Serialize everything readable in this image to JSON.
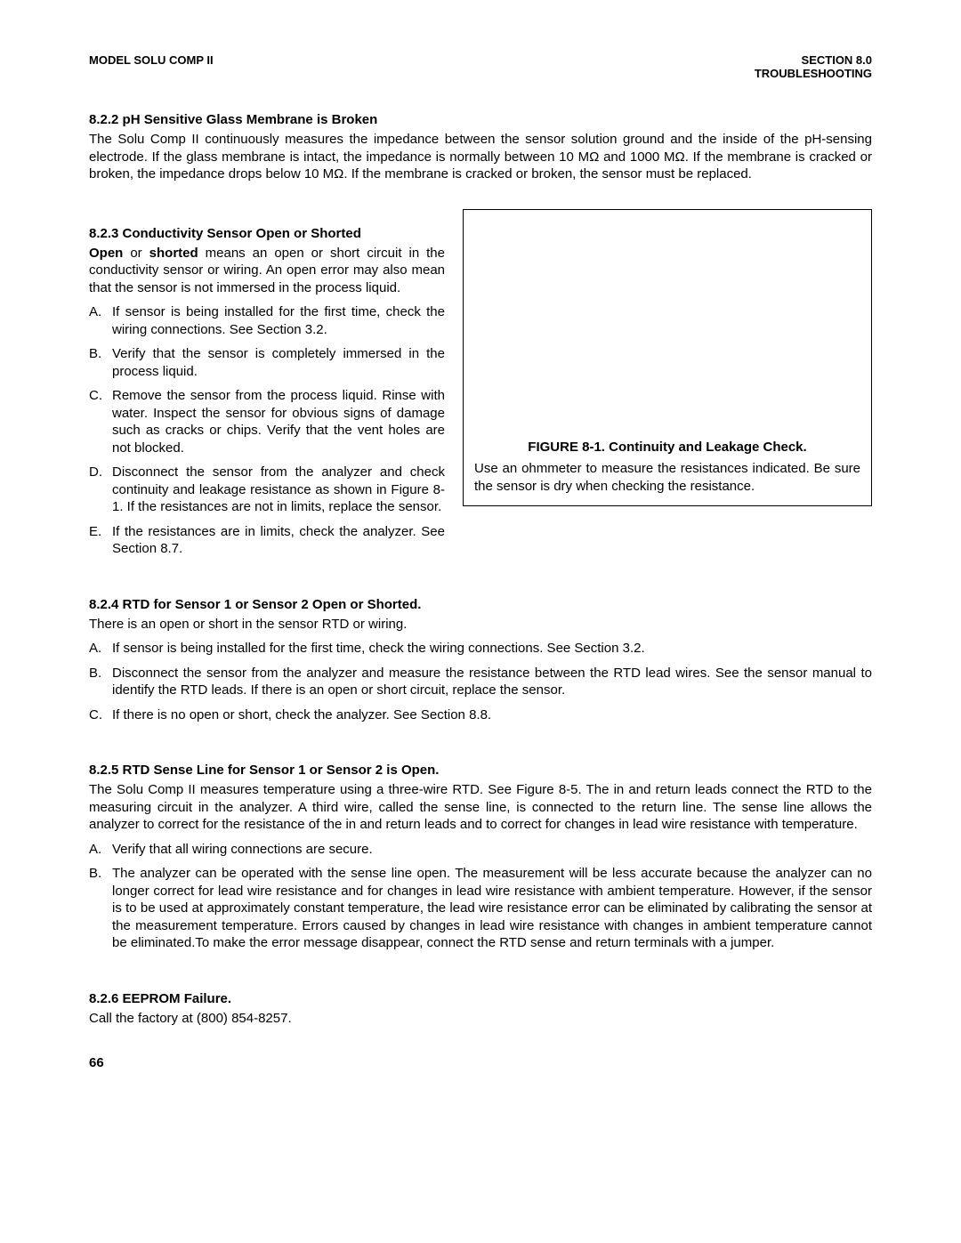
{
  "header": {
    "left": "MODEL SOLU COMP II",
    "right_line1": "SECTION 8.0",
    "right_line2": "TROUBLESHOOTING"
  },
  "sections": {
    "s822": {
      "title": "8.2.2  pH Sensitive Glass Membrane is Broken",
      "para": "The Solu Comp II continuously measures the impedance between the sensor solution ground and the inside of the pH-sensing electrode. If the glass membrane is intact, the impedance is normally between 10 MΩ and 1000 MΩ. If the membrane is cracked or broken, the impedance drops below 10 MΩ. If the membrane is cracked or broken, the sensor must be replaced."
    },
    "s823": {
      "title": "8.2.3  Conductivity Sensor Open or Shorted",
      "intro_pre": "Open",
      "intro_mid": " or ",
      "intro_bold2": "shorted",
      "intro_rest": " means an open or short circuit in the conductivity sensor or wiring. An open error may also mean that the sensor is not immersed in the process liquid.",
      "items": [
        "If sensor is being installed for the first time, check the wiring connections. See Section 3.2.",
        "Verify that the sensor is completely immersed in the process liquid.",
        "Remove the sensor from the process liquid. Rinse with water. Inspect the sensor for obvious signs of damage such as cracks or chips. Verify that the vent holes are not blocked.",
        "Disconnect the sensor from the analyzer and check continuity and leakage resistance as shown in Figure 8-1. If the resistances are not in limits, replace the sensor.",
        "If the resistances are in limits, check the analyzer. See Section 8.7."
      ]
    },
    "figure": {
      "title": "FIGURE 8-1. Continuity and Leakage Check.",
      "caption": "Use an ohmmeter to measure the resistances indicated. Be sure the sensor is dry when checking the resistance."
    },
    "s824": {
      "title": "8.2.4  RTD for Sensor 1 or Sensor 2 Open or Shorted.",
      "intro": "There is an open or short in the sensor RTD or wiring.",
      "items": [
        "If sensor is being installed for the first time, check the wiring connections. See Section 3.2.",
        "Disconnect the sensor from the analyzer and measure the resistance between the RTD lead wires. See the sensor manual to identify the RTD leads. If there is an open or short circuit, replace the sensor.",
        "If there is no open or short, check the analyzer. See Section 8.8."
      ]
    },
    "s825": {
      "title": "8.2.5  RTD Sense Line for Sensor 1 or Sensor 2 is Open.",
      "para": "The Solu Comp II measures temperature using a three-wire RTD. See Figure 8-5. The in and return leads connect the RTD to the measuring circuit in the analyzer. A third wire, called the sense line, is connected to the return line. The sense line allows the analyzer to correct for the resistance of the in and return leads and to correct for changes in lead wire resistance with temperature.",
      "items": [
        "Verify that all wiring connections are secure.",
        "The analyzer can be operated with the sense line open. The measurement will be less accurate because the analyzer can no longer correct for lead wire resistance and for changes in lead wire resistance with ambient temperature. However, if the sensor is to be used at approximately constant temperature, the lead wire resistance error can be eliminated by calibrating the sensor at the measurement temperature. Errors caused by changes in lead wire resistance with changes in ambient temperature cannot be eliminated.To make the error message disappear, connect the RTD sense and return terminals with a jumper."
      ]
    },
    "s826": {
      "title": "8.2.6  EEPROM Failure.",
      "para": "Call the factory at (800) 854-8257."
    }
  },
  "markers": [
    "A.",
    "B.",
    "C.",
    "D.",
    "E."
  ],
  "page_number": "66"
}
